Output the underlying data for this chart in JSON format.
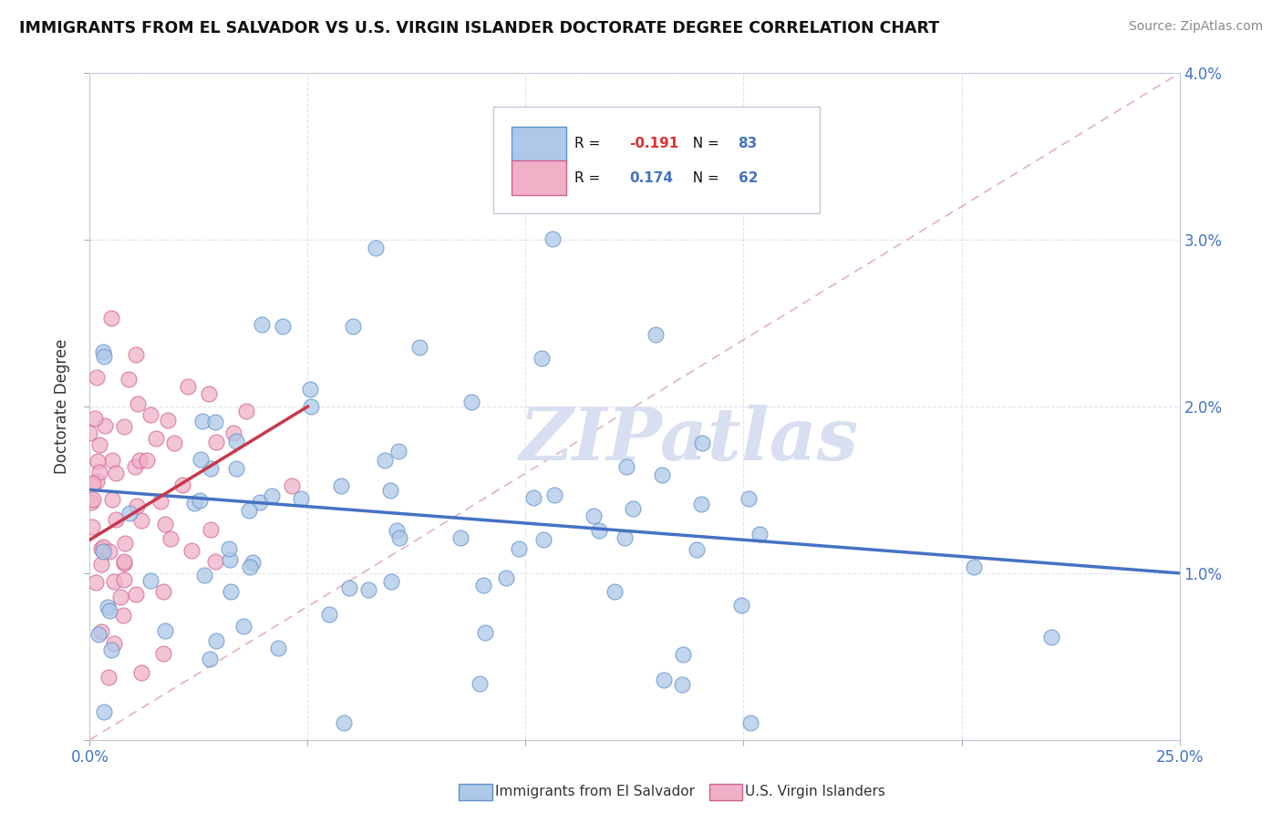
{
  "title": "IMMIGRANTS FROM EL SALVADOR VS U.S. VIRGIN ISLANDER DOCTORATE DEGREE CORRELATION CHART",
  "source": "Source: ZipAtlas.com",
  "ylabel": "Doctorate Degree",
  "xlim": [
    0.0,
    0.25
  ],
  "ylim": [
    0.0,
    0.04
  ],
  "xticks": [
    0.0,
    0.05,
    0.1,
    0.15,
    0.2,
    0.25
  ],
  "yticks": [
    0.0,
    0.01,
    0.02,
    0.03,
    0.04
  ],
  "xtick_labels": [
    "0.0%",
    "",
    "",
    "",
    "",
    "25.0%"
  ],
  "ytick_labels_right": [
    "",
    "1.0%",
    "2.0%",
    "3.0%",
    "4.0%"
  ],
  "blue_R": -0.191,
  "blue_N": 83,
  "pink_R": 0.174,
  "pink_N": 62,
  "blue_color": "#adc8e8",
  "pink_color": "#f0b0c8",
  "blue_edge_color": "#6090c8",
  "pink_edge_color": "#d06090",
  "blue_line_color": "#4472c4",
  "pink_line_color": "#c8384c",
  "diag_line_color": "#d08090",
  "legend_blue_label": "Immigrants from El Salvador",
  "legend_pink_label": "U.S. Virgin Islanders",
  "watermark": "ZIPatlas",
  "background_color": "#ffffff",
  "grid_color": "#d8dce8",
  "plot_bg_color": "#ffffff",
  "blue_trend_x0": 0.0,
  "blue_trend_y0": 0.015,
  "blue_trend_x1": 0.25,
  "blue_trend_y1": 0.01,
  "pink_trend_x0": 0.0,
  "pink_trend_y0": 0.012,
  "pink_trend_x1": 0.05,
  "pink_trend_y1": 0.02
}
